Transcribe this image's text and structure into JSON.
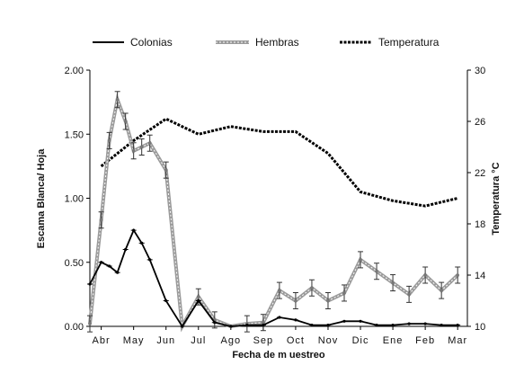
{
  "chart_data": {
    "type": "line",
    "xlabel": "Fecha de m uestreo",
    "ylabel": "Escama Blanca/ Hoja",
    "y2label": "Temperatura °C",
    "ylim": [
      0,
      2
    ],
    "y2lim": [
      10,
      30
    ],
    "yticks": [
      "0.00",
      "0.50",
      "1.00",
      "1.50",
      "2.00"
    ],
    "y2ticks": [
      "10",
      "14",
      "18",
      "22",
      "26",
      "30"
    ],
    "x_range": [
      -0.35,
      11.3
    ],
    "categories": [
      "Abr",
      "May",
      "Jun",
      "Jul",
      "Ago",
      "Sep",
      "Oct",
      "Nov",
      "Dic",
      "Ene",
      "Feb",
      "Mar"
    ],
    "legend_position": "top",
    "grid": false,
    "series": [
      {
        "name": "Colonias",
        "axis": "left",
        "color": "#000000",
        "x": [
          -0.5,
          0,
          0.25,
          0.5,
          0.75,
          1,
          1.25,
          1.5,
          2,
          2.5,
          3,
          3.5,
          4,
          4.5,
          5,
          5.5,
          6,
          6.5,
          7,
          7.5,
          8,
          8.5,
          9,
          9.5,
          10,
          10.5,
          11
        ],
        "values": [
          0.33,
          0.5,
          0.47,
          0.42,
          0.6,
          0.75,
          0.65,
          0.52,
          0.2,
          0.0,
          0.2,
          0.03,
          0.0,
          0.01,
          0.01,
          0.07,
          0.05,
          0.01,
          0.01,
          0.04,
          0.04,
          0.01,
          0.01,
          0.02,
          0.02,
          0.01,
          0.01
        ]
      },
      {
        "name": "Hembras",
        "axis": "left",
        "color": "#9a9a9a",
        "x": [
          -0.5,
          0,
          0.25,
          0.5,
          0.75,
          1,
          1.25,
          1.5,
          2,
          2.5,
          3,
          3.5,
          4,
          4.5,
          5,
          5.5,
          6,
          6.5,
          7,
          7.5,
          8,
          8.5,
          9,
          9.5,
          10,
          10.5,
          11
        ],
        "values": [
          0.02,
          0.83,
          1.45,
          1.77,
          1.6,
          1.37,
          1.4,
          1.43,
          1.22,
          0.0,
          0.23,
          0.05,
          0.0,
          0.02,
          0.03,
          0.28,
          0.2,
          0.3,
          0.2,
          0.26,
          0.52,
          0.43,
          0.34,
          0.25,
          0.4,
          0.28,
          0.4
        ]
      },
      {
        "name": "Temperatura",
        "axis": "right",
        "color": "#000000",
        "x": [
          0,
          1,
          2,
          3,
          4,
          5,
          6,
          7,
          8,
          9,
          10,
          11
        ],
        "values": [
          22.5,
          24.5,
          26.2,
          25.0,
          25.6,
          25.2,
          25.2,
          23.5,
          20.5,
          19.8,
          19.4,
          20.0
        ]
      }
    ]
  }
}
